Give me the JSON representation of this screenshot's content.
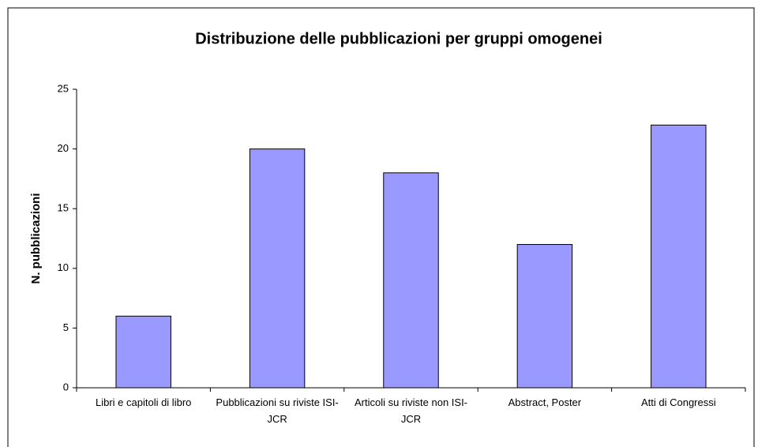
{
  "chart_data": {
    "type": "bar",
    "title": "Distribuzione delle pubblicazioni per gruppi omogenei",
    "y_label": "N. pubblicazioni",
    "categories": [
      "Libri e capitoli di libro",
      "Pubblicazioni su riviste ISI-JCR",
      "Articoli su riviste non ISI-JCR",
      "Abstract, Poster",
      "Atti di Congressi"
    ],
    "values": [
      6,
      20,
      18,
      12,
      22
    ],
    "color": "#9999ff",
    "ylim": [
      0,
      25
    ],
    "yticks": [
      0,
      5,
      10,
      15,
      20,
      25
    ],
    "grid": false
  }
}
